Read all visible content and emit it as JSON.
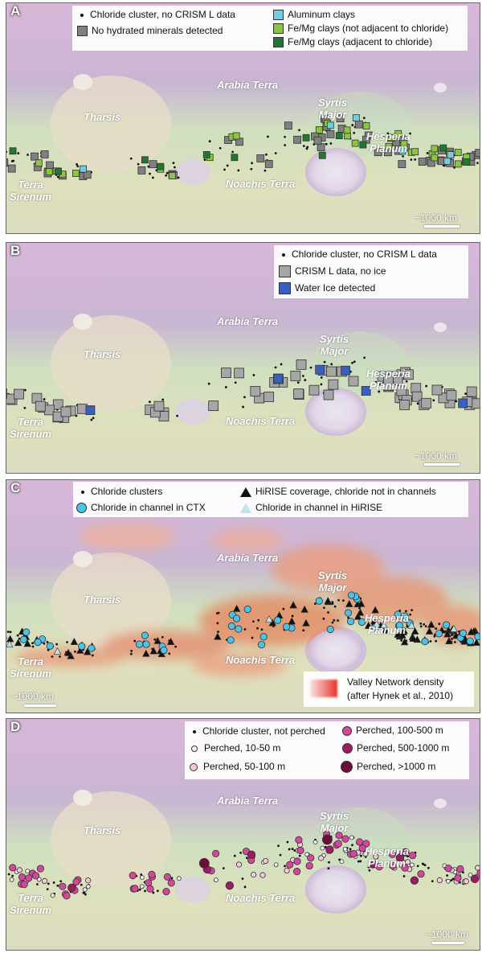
{
  "panels": [
    {
      "id": "A",
      "letter": "A",
      "scale_label": "~1000 km",
      "legend": [
        {
          "symbol": "dot",
          "color": "#111111",
          "label": "Chloride cluster, no CRISM L data"
        },
        {
          "symbol": "square",
          "color": "#808080",
          "label": "No hydrated minerals detected"
        },
        {
          "symbol": "square",
          "color": "#6fcfe0",
          "label": "Aluminum clays"
        },
        {
          "symbol": "square",
          "color": "#8cc63f",
          "label": "Fe/Mg clays (not adjacent to chloride)"
        },
        {
          "symbol": "square",
          "color": "#1e7a2e",
          "label": "Fe/Mg clays (adjacent to chloride)"
        }
      ]
    },
    {
      "id": "B",
      "letter": "B",
      "scale_label": "~1000 km",
      "legend": [
        {
          "symbol": "dot",
          "color": "#111111",
          "label": "Chloride cluster, no CRISM L data"
        },
        {
          "symbol": "square",
          "color": "#a6a6a6",
          "label": "CRISM L data, no ice"
        },
        {
          "symbol": "square",
          "color": "#3a5fc0",
          "label": "Water Ice detected"
        }
      ]
    },
    {
      "id": "C",
      "letter": "C",
      "scale_label": "~1000 km",
      "legend": [
        {
          "symbol": "dot",
          "color": "#111111",
          "label": "Chloride clusters"
        },
        {
          "symbol": "circle",
          "color": "#4cc3e6",
          "label": "Chloride in channel in CTX"
        },
        {
          "symbol": "triangle",
          "color": "#111111",
          "label": "HiRISE coverage, chloride not in channels"
        },
        {
          "symbol": "triangle",
          "color": "#bde3f0",
          "label": "Chloride in channel in HiRISE"
        }
      ],
      "density_legend": {
        "line1": "Valley Network density",
        "line2": "(after Hynek et al., 2010)"
      }
    },
    {
      "id": "D",
      "letter": "D",
      "scale_label": "~1000 km",
      "legend": [
        {
          "symbol": "dot",
          "color": "#111111",
          "label": "Chloride cluster, not perched"
        },
        {
          "symbol": "circle",
          "color": "#fbf3f6",
          "label": "Perched, 10-50 m"
        },
        {
          "symbol": "circle",
          "color": "#f3c9d8",
          "label": "Perched, 50-100 m"
        },
        {
          "symbol": "circle",
          "color": "#d4479a",
          "label": "Perched, 100-500 m"
        },
        {
          "symbol": "circle",
          "color": "#9c1a66",
          "label": "Perched, 500-1000 m"
        },
        {
          "symbol": "circle",
          "color": "#6a0f3c",
          "label": "Perched, >1000 m"
        }
      ]
    }
  ],
  "places": {
    "arabia_terra": "Arabia Terra",
    "syrtis_major_1": "Syrtis",
    "syrtis_major_2": "Major",
    "tharsis": "Tharsis",
    "hesperia_planum_1": "Hesperia",
    "hesperia_planum_2": "Planum",
    "noachis_terra": "Noachis Terra",
    "terra_sirenum_1": "Terra",
    "terra_sirenum_2": "Sirenum"
  }
}
